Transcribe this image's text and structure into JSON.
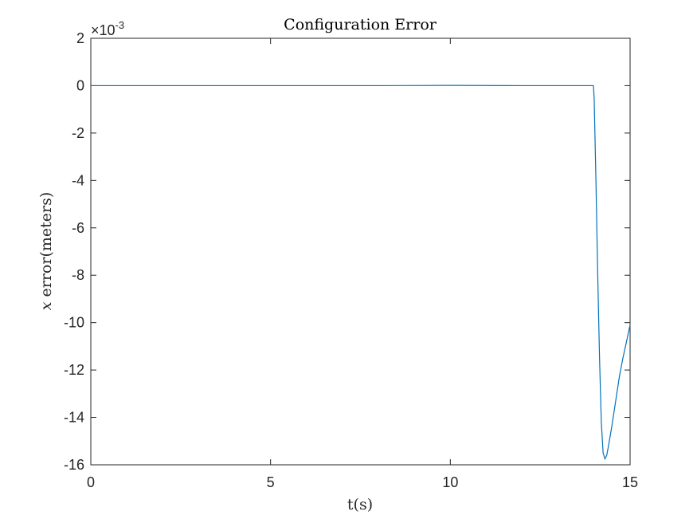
{
  "chart_data": {
    "type": "line",
    "title": "Configuration Error",
    "xlabel": "t(s)",
    "ylabel_var": "x",
    "ylabel_text": " error(meters)",
    "y_exponent_base": "×10",
    "y_exponent_power": "-3",
    "xlim": [
      0,
      15
    ],
    "ylim": [
      -16,
      2
    ],
    "xticks": [
      0,
      5,
      10,
      15
    ],
    "yticks": [
      2,
      0,
      -2,
      -4,
      -6,
      -8,
      -10,
      -12,
      -14,
      -16
    ],
    "grid": false,
    "series": [
      {
        "color": "#0072bd",
        "x": [
          0,
          2,
          4,
          6,
          8,
          10,
          12,
          13.5,
          13.98,
          14.0,
          14.05,
          14.1,
          14.15,
          14.2,
          14.25,
          14.3,
          14.35,
          14.4,
          14.5,
          14.6,
          14.7,
          14.8,
          14.9,
          15.0
        ],
        "y": [
          0,
          0,
          0,
          0,
          0,
          0.01,
          0,
          0,
          0,
          -0.5,
          -4.0,
          -8.0,
          -11.5,
          -14.2,
          -15.5,
          -15.75,
          -15.6,
          -15.2,
          -14.3,
          -13.3,
          -12.3,
          -11.5,
          -10.8,
          -10.1
        ]
      }
    ]
  }
}
